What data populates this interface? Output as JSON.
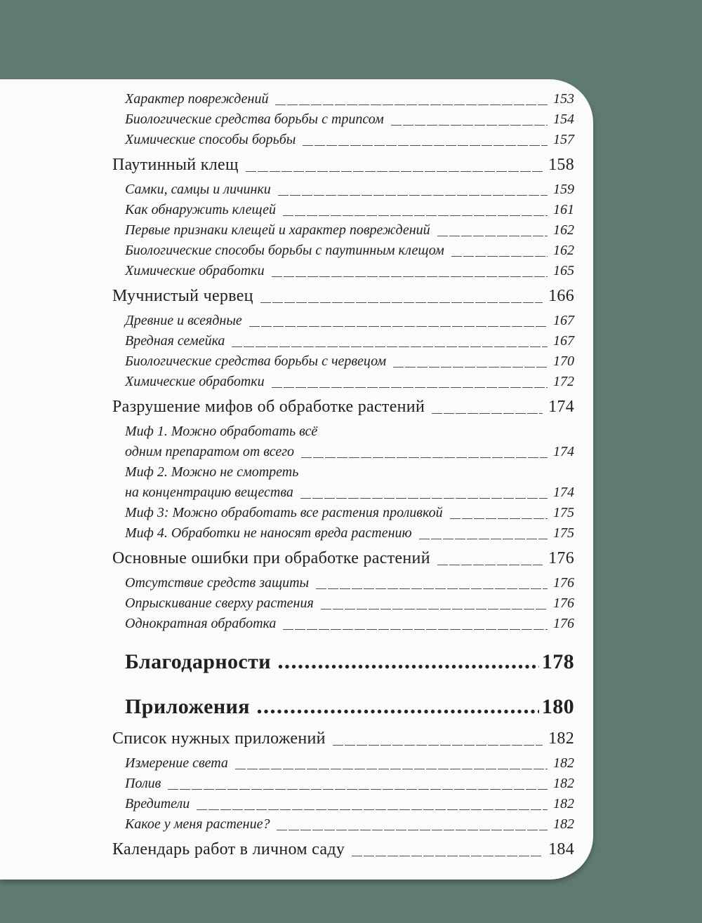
{
  "page": {
    "background_color": "#5f7a6e",
    "paper_color": "#fbfbf9",
    "text_color": "#21201e",
    "leader_color": "#4c4c4c"
  },
  "toc": {
    "entries": [
      {
        "level": 2,
        "label": "Характер повреждений",
        "page": "153",
        "leader": "line"
      },
      {
        "level": 2,
        "label": "Биологические средства борьбы с трипсом",
        "page": "154",
        "leader": "line"
      },
      {
        "level": 2,
        "label": "Химические способы борьбы",
        "page": "157",
        "leader": "line"
      },
      {
        "level": 1,
        "label": "Паутинный клещ",
        "page": "158",
        "leader": "line"
      },
      {
        "level": 2,
        "label": "Самки, самцы и личинки",
        "page": "159",
        "leader": "line"
      },
      {
        "level": 2,
        "label": "Как обнаружить клещей",
        "page": "161",
        "leader": "line"
      },
      {
        "level": 2,
        "label": "Первые признаки клещей и характер повреждений",
        "page": "162",
        "leader": "line"
      },
      {
        "level": 2,
        "label": "Биологические способы борьбы с паутинным клещом",
        "page": "162",
        "leader": "line"
      },
      {
        "level": 2,
        "label": "Химические обработки",
        "page": "165",
        "leader": "line"
      },
      {
        "level": 1,
        "label": "Мучнистый червец",
        "page": "166",
        "leader": "line"
      },
      {
        "level": 2,
        "label": "Древние и всеядные",
        "page": "167",
        "leader": "line"
      },
      {
        "level": 2,
        "label": "Вредная семейка",
        "page": "167",
        "leader": "line"
      },
      {
        "level": 2,
        "label": "Биологические средства борьбы с червецом",
        "page": "170",
        "leader": "line"
      },
      {
        "level": 2,
        "label": "Химические обработки",
        "page": "172",
        "leader": "line"
      },
      {
        "level": 1,
        "label": "Разрушение мифов об обработке растений",
        "page": "174",
        "leader": "line"
      },
      {
        "level": 2,
        "label": "Миф 1. Можно обработать всё",
        "leader": "none"
      },
      {
        "level": 2,
        "label": "одним препаратом от всего",
        "page": "174",
        "leader": "line"
      },
      {
        "level": 2,
        "label": "Миф 2. Можно не смотреть",
        "leader": "none"
      },
      {
        "level": 2,
        "label": "на концентрацию вещества",
        "page": "174",
        "leader": "line"
      },
      {
        "level": 2,
        "label": "Миф 3: Можно обработать все растения проливкой",
        "page": "175",
        "leader": "line"
      },
      {
        "level": 2,
        "label": "Миф 4. Обработки не наносят вреда растению",
        "page": "175",
        "leader": "line"
      },
      {
        "level": 1,
        "label": "Основные ошибки при обработке растений",
        "page": "176",
        "leader": "line"
      },
      {
        "level": 2,
        "label": "Отсутствие средств защиты",
        "page": "176",
        "leader": "line"
      },
      {
        "level": 2,
        "label": "Опрыскивание сверху растения",
        "page": "176",
        "leader": "line"
      },
      {
        "level": 2,
        "label": "Однократная обработка",
        "page": "176",
        "leader": "line"
      },
      {
        "level": 0,
        "label": "Благодарности ",
        "page": "178",
        "leader": "dots"
      },
      {
        "level": 0,
        "label": "Приложения ",
        "page": "180",
        "leader": "dots"
      },
      {
        "level": 1,
        "label": "Список нужных приложений",
        "page": "182",
        "leader": "line"
      },
      {
        "level": 2,
        "label": "Измерение света",
        "page": "182",
        "leader": "line"
      },
      {
        "level": 2,
        "label": "Полив",
        "page": "182",
        "leader": "line"
      },
      {
        "level": 2,
        "label": "Вредители",
        "page": "182",
        "leader": "line"
      },
      {
        "level": 2,
        "label": "Какое у меня растение?",
        "page": "182",
        "leader": "line"
      },
      {
        "level": 1,
        "label": "Календарь работ в личном саду",
        "page": "184",
        "leader": "line"
      }
    ]
  }
}
